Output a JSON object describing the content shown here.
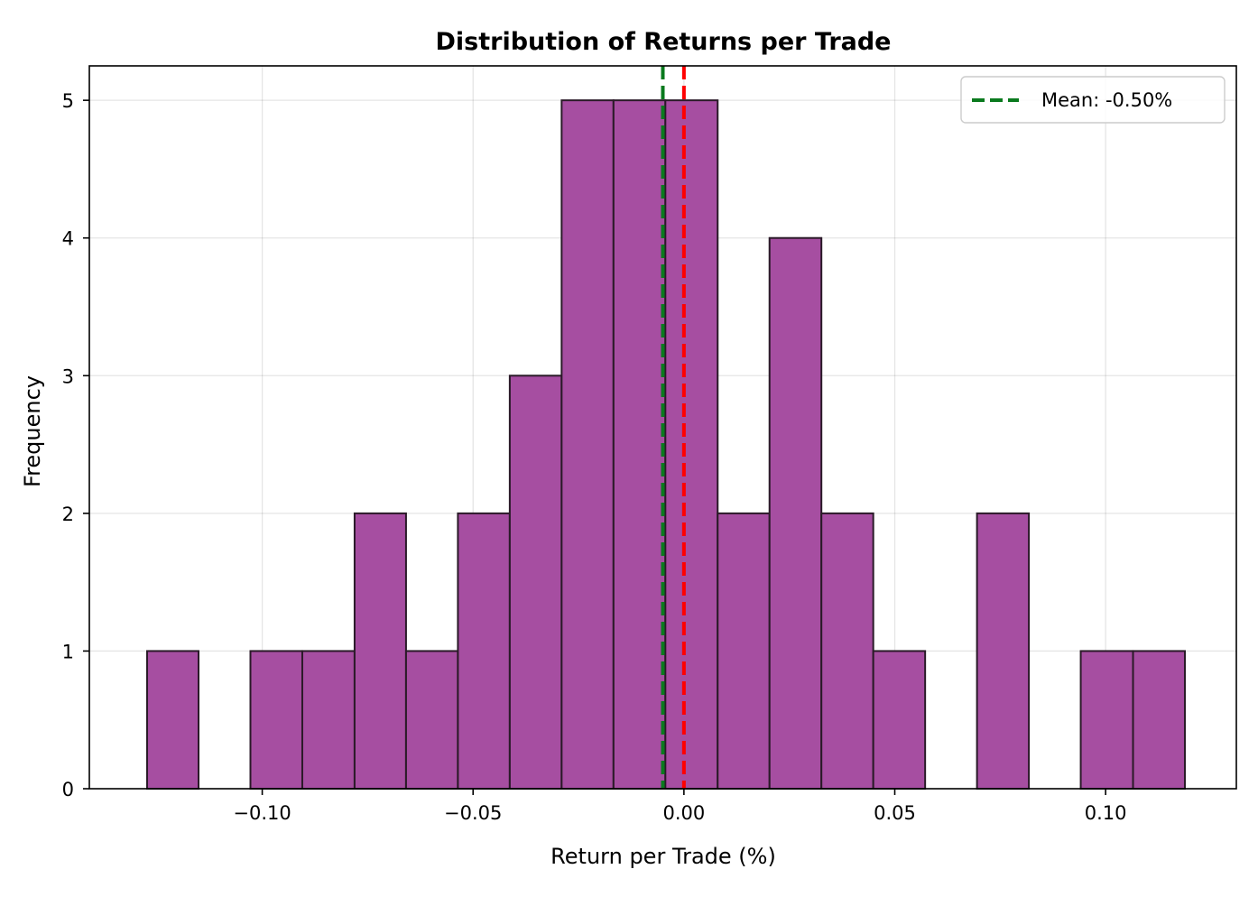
{
  "chart_data": {
    "type": "bar",
    "subtype": "histogram",
    "title": "Distribution of Returns per Trade",
    "xlabel": "Return per Trade (%)",
    "ylabel": "Frequency",
    "xlim": [
      -0.141,
      0.131
    ],
    "ylim": [
      0,
      5.25
    ],
    "x_ticks": [
      -0.1,
      -0.05,
      0.0,
      0.05,
      0.1
    ],
    "x_tick_labels": [
      "−0.10",
      "−0.05",
      "0.00",
      "0.05",
      "0.10"
    ],
    "y_ticks": [
      0,
      1,
      2,
      3,
      4,
      5
    ],
    "y_tick_labels": [
      "0",
      "1",
      "2",
      "3",
      "4",
      "5"
    ],
    "bin_edges": [
      -0.1273,
      -0.1151,
      -0.1028,
      -0.0905,
      -0.0781,
      -0.0659,
      -0.0536,
      -0.0413,
      -0.029,
      -0.0167,
      -0.0044,
      0.008,
      0.0203,
      0.0326,
      0.0449,
      0.0572,
      0.0695,
      0.0818,
      0.0941,
      0.1065,
      0.1188
    ],
    "counts": [
      1,
      0,
      1,
      1,
      2,
      1,
      2,
      3,
      5,
      5,
      5,
      2,
      4,
      2,
      1,
      0,
      2,
      0,
      1,
      1
    ],
    "bar_color": "#a64ea1",
    "bar_edge_color": "#2a1a28",
    "grid": true,
    "reference_lines": [
      {
        "x": -0.005,
        "color": "#0a7a1e",
        "style": "dashed",
        "legend": "Mean: -0.50%"
      },
      {
        "x": 0.0,
        "color": "#ff0000",
        "style": "dashed"
      }
    ],
    "legend": {
      "position": "top-right",
      "entries": [
        "Mean: -0.50%"
      ]
    }
  }
}
